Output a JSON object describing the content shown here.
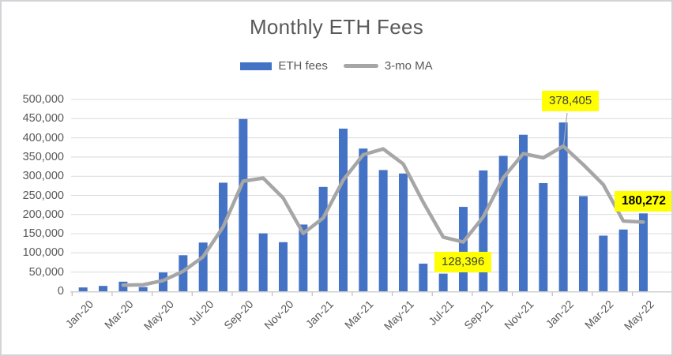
{
  "title": "Monthly ETH Fees",
  "legend": [
    {
      "label": "ETH fees",
      "type": "bar"
    },
    {
      "label": "3-mo MA",
      "type": "line"
    }
  ],
  "colors": {
    "bar": "#4472C4",
    "line": "#A6A6A6",
    "gridline": "#D9D9D9",
    "axis": "#D0D0D0",
    "tick": "#BFBFBF",
    "leader": "#AFAFAF",
    "text": "#595959",
    "callout_bg": "#FFFF00"
  },
  "y_axis": {
    "min": 0,
    "max": 500000,
    "step": 50000,
    "tick_labels": [
      "0",
      "50,000",
      "100,000",
      "150,000",
      "200,000",
      "250,000",
      "300,000",
      "350,000",
      "400,000",
      "450,000",
      "500,000"
    ]
  },
  "x_axis": {
    "tick_labels": [
      "Jan-20",
      "Mar-20",
      "May-20",
      "Jul-20",
      "Sep-20",
      "Nov-20",
      "Jan-21",
      "Mar-21",
      "May-21",
      "Jul-21",
      "Sep-21",
      "Nov-21",
      "Jan-22",
      "Mar-22",
      "May-22"
    ]
  },
  "chart_data": {
    "type": "bar",
    "title": "Monthly ETH Fees",
    "categories": [
      "Jan-20",
      "Feb-20",
      "Mar-20",
      "Apr-20",
      "May-20",
      "Jun-20",
      "Jul-20",
      "Aug-20",
      "Sep-20",
      "Oct-20",
      "Nov-20",
      "Dec-20",
      "Jan-21",
      "Feb-21",
      "Mar-21",
      "Apr-21",
      "May-21",
      "Jun-21",
      "Jul-21",
      "Aug-21",
      "Sep-21",
      "Oct-21",
      "Nov-21",
      "Dec-21",
      "Jan-22",
      "Feb-22",
      "Mar-22",
      "Apr-22",
      "May-22"
    ],
    "series": [
      {
        "name": "ETH fees",
        "type": "bar",
        "values": [
          10000,
          14000,
          25000,
          11000,
          49000,
          94000,
          127000,
          283000,
          449000,
          151000,
          128000,
          174000,
          272000,
          424000,
          372000,
          316000,
          307000,
          72000,
          46000,
          220000,
          315000,
          353000,
          408000,
          282000,
          440000,
          248000,
          145000,
          161000,
          203000
        ]
      },
      {
        "name": "3-mo MA",
        "type": "line",
        "values": [
          null,
          null,
          16000,
          17000,
          28000,
          52000,
          90000,
          168000,
          287000,
          295000,
          243000,
          151000,
          191000,
          290000,
          356000,
          371000,
          332000,
          232000,
          141000,
          128396,
          194000,
          296000,
          359000,
          348000,
          378405,
          330000,
          278000,
          183000,
          180272
        ]
      }
    ],
    "ylim": [
      0,
      500000
    ],
    "grid": true,
    "legend_position": "top",
    "annotations": [
      {
        "text": "128,396",
        "series": "3-mo MA",
        "category": "Aug-21"
      },
      {
        "text": "378,405",
        "series": "3-mo MA",
        "category": "Jan-22"
      },
      {
        "text": "180,272",
        "series": "3-mo MA",
        "category": "May-22",
        "bold": true
      }
    ]
  }
}
